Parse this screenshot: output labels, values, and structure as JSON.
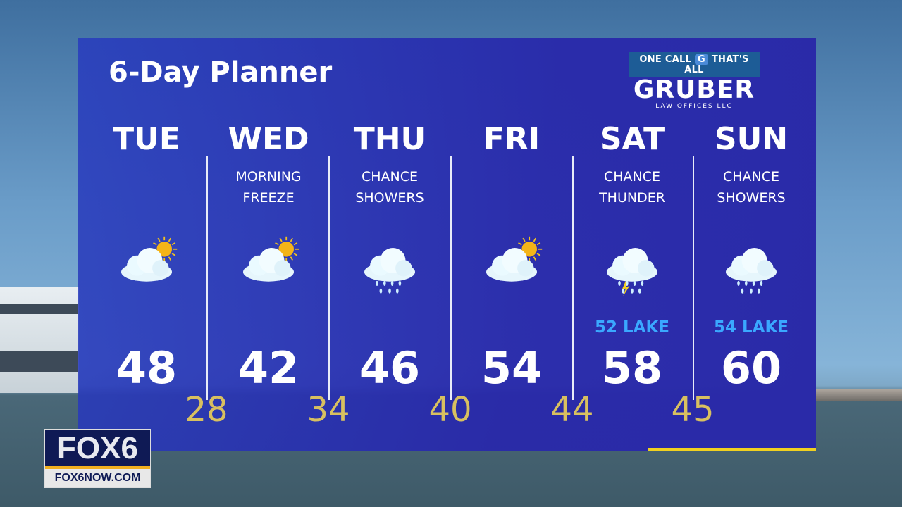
{
  "title": "6-Day Planner",
  "sponsor": {
    "tagline_left": "ONE CALL",
    "tagline_right": "THAT'S ALL",
    "badge": "G",
    "name": "GRUBER",
    "sub": "LAW OFFICES LLC"
  },
  "days": [
    {
      "day": "TUE",
      "desc1": "",
      "desc2": "",
      "icon": "partly-sunny-icon",
      "lake": "",
      "high": "48"
    },
    {
      "day": "WED",
      "desc1": "MORNING",
      "desc2": "FREEZE",
      "icon": "partly-sunny-icon",
      "lake": "",
      "high": "42"
    },
    {
      "day": "THU",
      "desc1": "CHANCE",
      "desc2": "SHOWERS",
      "icon": "rain-icon",
      "lake": "",
      "high": "46"
    },
    {
      "day": "FRI",
      "desc1": "",
      "desc2": "",
      "icon": "partly-sunny-icon",
      "lake": "",
      "high": "54"
    },
    {
      "day": "SAT",
      "desc1": "CHANCE",
      "desc2": "THUNDER",
      "icon": "thunderstorm-icon",
      "lake": "52 LAKE",
      "high": "58"
    },
    {
      "day": "SUN",
      "desc1": "CHANCE",
      "desc2": "SHOWERS",
      "icon": "rain-icon",
      "lake": "54 LAKE",
      "high": "60"
    }
  ],
  "lows": [
    "28",
    "34",
    "40",
    "44",
    "45"
  ],
  "colors": {
    "high": "#ffffff",
    "low": "#d8c060",
    "lake": "#3aa8ff",
    "panel": "#2a2aa8"
  },
  "station": {
    "logo": "FOX6",
    "url": "FOX6NOW.COM"
  }
}
